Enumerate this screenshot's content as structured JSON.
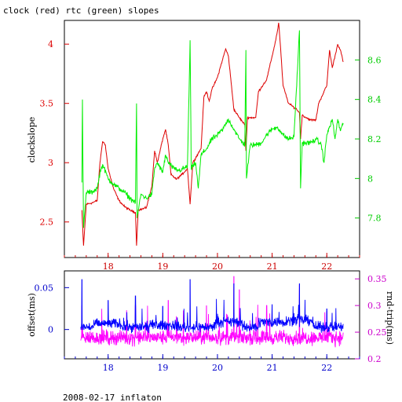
{
  "title": "clock (red) rtc (green) slopes",
  "footer": "2008-02-17 inflaton",
  "chart_data": [
    {
      "type": "line",
      "title": "clock (red) rtc (green) slopes",
      "xlim": [
        17.2,
        22.6
      ],
      "x_ticks": [
        18,
        19,
        20,
        21,
        22
      ],
      "ylabel": "clockslope",
      "ylim": [
        2.2,
        4.2
      ],
      "y_ticks": [
        2.5,
        3,
        3.5,
        4
      ],
      "y2lim": [
        7.6,
        8.8
      ],
      "y2_ticks": [
        7.8,
        8,
        8.2,
        8.4,
        8.6
      ],
      "colors": {
        "clock": "#dd0000",
        "rtc": "#00ee00",
        "axis_left": "#dd0000",
        "axis_right": "#00cc00",
        "axis_x": "#cc0000"
      },
      "series": [
        {
          "axis": "left",
          "color": "#dd0000",
          "points": [
            [
              17.52,
              2.6
            ],
            [
              17.55,
              2.3
            ],
            [
              17.6,
              2.65
            ],
            [
              17.7,
              2.66
            ],
            [
              17.8,
              2.68
            ],
            [
              17.85,
              3.0
            ],
            [
              17.9,
              3.18
            ],
            [
              17.95,
              3.15
            ],
            [
              18.0,
              2.95
            ],
            [
              18.1,
              2.78
            ],
            [
              18.2,
              2.68
            ],
            [
              18.3,
              2.63
            ],
            [
              18.4,
              2.6
            ],
            [
              18.5,
              2.58
            ],
            [
              18.52,
              2.3
            ],
            [
              18.55,
              2.6
            ],
            [
              18.7,
              2.62
            ],
            [
              18.8,
              2.8
            ],
            [
              18.85,
              3.1
            ],
            [
              18.9,
              3.0
            ],
            [
              19.0,
              3.2
            ],
            [
              19.05,
              3.28
            ],
            [
              19.1,
              3.15
            ],
            [
              19.15,
              2.9
            ],
            [
              19.25,
              2.86
            ],
            [
              19.35,
              2.9
            ],
            [
              19.45,
              2.95
            ],
            [
              19.5,
              2.65
            ],
            [
              19.55,
              3.0
            ],
            [
              19.7,
              3.12
            ],
            [
              19.75,
              3.55
            ],
            [
              19.8,
              3.6
            ],
            [
              19.85,
              3.52
            ],
            [
              19.9,
              3.62
            ],
            [
              20.0,
              3.72
            ],
            [
              20.1,
              3.88
            ],
            [
              20.15,
              3.96
            ],
            [
              20.2,
              3.9
            ],
            [
              20.3,
              3.45
            ],
            [
              20.4,
              3.38
            ],
            [
              20.5,
              3.32
            ],
            [
              20.52,
              3.1
            ],
            [
              20.55,
              3.38
            ],
            [
              20.7,
              3.38
            ],
            [
              20.75,
              3.6
            ],
            [
              20.9,
              3.7
            ],
            [
              21.0,
              3.9
            ],
            [
              21.05,
              4.0
            ],
            [
              21.1,
              4.12
            ],
            [
              21.12,
              4.18
            ],
            [
              21.15,
              4.0
            ],
            [
              21.2,
              3.65
            ],
            [
              21.3,
              3.5
            ],
            [
              21.45,
              3.45
            ],
            [
              21.5,
              3.42
            ],
            [
              21.52,
              3.2
            ],
            [
              21.55,
              3.4
            ],
            [
              21.7,
              3.36
            ],
            [
              21.8,
              3.36
            ],
            [
              21.85,
              3.5
            ],
            [
              21.9,
              3.55
            ],
            [
              22.0,
              3.65
            ],
            [
              22.05,
              3.95
            ],
            [
              22.1,
              3.8
            ],
            [
              22.15,
              3.9
            ],
            [
              22.2,
              4.0
            ],
            [
              22.25,
              3.95
            ],
            [
              22.3,
              3.85
            ]
          ]
        },
        {
          "axis": "right",
          "color": "#00ee00",
          "points": [
            [
              17.52,
              7.98
            ],
            [
              17.53,
              8.4
            ],
            [
              17.55,
              7.75
            ],
            [
              17.6,
              7.93
            ],
            [
              17.7,
              7.93
            ],
            [
              17.8,
              7.95
            ],
            [
              17.85,
              8.03
            ],
            [
              17.9,
              8.07
            ],
            [
              18.0,
              8.0
            ],
            [
              18.1,
              7.97
            ],
            [
              18.2,
              7.95
            ],
            [
              18.3,
              7.93
            ],
            [
              18.4,
              7.9
            ],
            [
              18.5,
              7.88
            ],
            [
              18.52,
              8.38
            ],
            [
              18.53,
              7.8
            ],
            [
              18.6,
              7.92
            ],
            [
              18.7,
              7.9
            ],
            [
              18.8,
              7.92
            ],
            [
              18.85,
              8.05
            ],
            [
              18.9,
              8.08
            ],
            [
              19.0,
              8.03
            ],
            [
              19.05,
              8.12
            ],
            [
              19.1,
              8.08
            ],
            [
              19.2,
              8.05
            ],
            [
              19.3,
              8.04
            ],
            [
              19.45,
              8.06
            ],
            [
              19.5,
              8.7
            ],
            [
              19.52,
              8.05
            ],
            [
              19.6,
              8.08
            ],
            [
              19.65,
              7.95
            ],
            [
              19.7,
              8.12
            ],
            [
              19.8,
              8.15
            ],
            [
              19.9,
              8.2
            ],
            [
              20.0,
              8.22
            ],
            [
              20.1,
              8.25
            ],
            [
              20.2,
              8.3
            ],
            [
              20.3,
              8.25
            ],
            [
              20.4,
              8.2
            ],
            [
              20.5,
              8.17
            ],
            [
              20.52,
              8.65
            ],
            [
              20.53,
              8.0
            ],
            [
              20.6,
              8.17
            ],
            [
              20.7,
              8.17
            ],
            [
              20.8,
              8.18
            ],
            [
              20.9,
              8.22
            ],
            [
              21.0,
              8.25
            ],
            [
              21.1,
              8.26
            ],
            [
              21.2,
              8.22
            ],
            [
              21.3,
              8.2
            ],
            [
              21.4,
              8.21
            ],
            [
              21.5,
              8.75
            ],
            [
              21.52,
              7.95
            ],
            [
              21.55,
              8.18
            ],
            [
              21.7,
              8.18
            ],
            [
              21.8,
              8.2
            ],
            [
              21.9,
              8.17
            ],
            [
              21.95,
              8.08
            ],
            [
              22.0,
              8.22
            ],
            [
              22.1,
              8.3
            ],
            [
              22.15,
              8.2
            ],
            [
              22.2,
              8.3
            ],
            [
              22.25,
              8.24
            ],
            [
              22.3,
              8.28
            ]
          ]
        }
      ]
    },
    {
      "type": "line",
      "xlim": [
        17.2,
        22.6
      ],
      "x_ticks": [
        18,
        19,
        20,
        21,
        22
      ],
      "ylabel": "offset(ms)",
      "ylim": [
        -0.035,
        0.07
      ],
      "y_ticks": [
        0,
        0.05
      ],
      "y2label": "rnd-trip(ms)",
      "y2lim": [
        0.2,
        0.365
      ],
      "y2_ticks": [
        0.2,
        0.25,
        0.3,
        0.35
      ],
      "colors": {
        "offset": "#0000ff",
        "rndtrip": "#ff00ff",
        "axis_left": "#0000cc",
        "axis_right": "#cc00cc",
        "axis_x": "#0000cc"
      },
      "series": [
        {
          "axis": "left",
          "color": "#0000ff",
          "x_range": [
            17.5,
            22.3
          ],
          "mean": 0.003,
          "noise": 0.009,
          "bumps": [
            [
              18.0,
              0.004
            ],
            [
              19.0,
              0.002
            ],
            [
              20.2,
              0.006
            ],
            [
              21.0,
              0.006
            ],
            [
              21.5,
              0.008
            ]
          ],
          "spikes": [
            [
              17.52,
              0.06
            ],
            [
              18.0,
              0.035
            ],
            [
              18.5,
              0.04
            ],
            [
              19.0,
              0.028
            ],
            [
              19.5,
              0.06
            ],
            [
              20.3,
              0.055
            ],
            [
              21.0,
              0.03
            ],
            [
              21.5,
              0.055
            ],
            [
              22.0,
              0.025
            ]
          ]
        },
        {
          "axis": "right",
          "color": "#ff00ff",
          "x_range": [
            17.5,
            22.3
          ],
          "mean": 0.24,
          "noise": 0.02,
          "spikes": [
            [
              17.52,
              0.3
            ],
            [
              18.5,
              0.3
            ],
            [
              19.1,
              0.31
            ],
            [
              19.8,
              0.3
            ],
            [
              20.3,
              0.355
            ],
            [
              20.4,
              0.33
            ],
            [
              20.9,
              0.3
            ],
            [
              21.5,
              0.34
            ],
            [
              22.0,
              0.29
            ]
          ]
        }
      ]
    }
  ]
}
